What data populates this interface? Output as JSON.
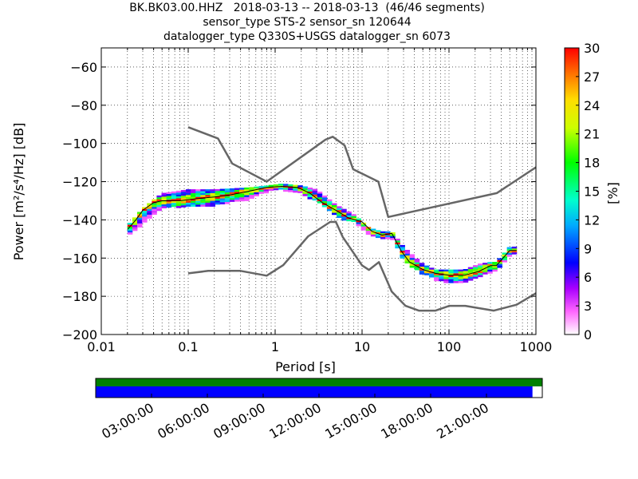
{
  "title": {
    "line1": "BK.BK03.00.HHZ   2018-03-13 -- 2018-03-13  (46/46 segments)",
    "line2": "sensor_type STS-2 sensor_sn 120644",
    "line3": "datalogger_type Q330S+USGS datalogger_sn 6073"
  },
  "chart_data": {
    "type": "heatmap",
    "xlabel": "Period [s]",
    "ylabel": "Power [m²/s⁴/Hz] [dB]",
    "xscale": "log",
    "xlim": [
      0.01,
      1000
    ],
    "ylim": [
      -200,
      -50
    ],
    "x_tick_labels": [
      "0.01",
      "0.1",
      "1",
      "10",
      "100",
      "1000"
    ],
    "x_tick_values": [
      0.01,
      0.1,
      1,
      10,
      100,
      1000
    ],
    "y_ticks": [
      -60,
      -80,
      -100,
      -120,
      -140,
      -160,
      -180,
      -200
    ],
    "y_tick_labels": [
      "−60",
      "−80",
      "−100",
      "−120",
      "−140",
      "−160",
      "−180",
      "−200"
    ],
    "grid": true,
    "colorbar": {
      "label": "[%]",
      "min": 0,
      "max": 30,
      "ticks": [
        0,
        3,
        6,
        9,
        12,
        15,
        18,
        21,
        24,
        27,
        30
      ]
    },
    "new_high_noise_model": {
      "x": [
        0.1,
        0.22,
        0.32,
        0.8,
        3.8,
        4.6,
        6.3,
        7.9,
        15.4,
        20,
        354.8,
        1000
      ],
      "y": [
        -91.5,
        -97.4,
        -110.5,
        -120,
        -98,
        -96.5,
        -101,
        -113.5,
        -120,
        -138.5,
        -126,
        -112.5
      ]
    },
    "new_low_noise_model": {
      "x": [
        0.1,
        0.17,
        0.4,
        0.8,
        1.24,
        2.4,
        4.3,
        5,
        6,
        10,
        12,
        15.6,
        21.9,
        31.6,
        45,
        70,
        101,
        154,
        328,
        600,
        1000
      ],
      "y": [
        -168,
        -166.7,
        -166.7,
        -169.2,
        -163.7,
        -148.6,
        -141.1,
        -141.1,
        -149,
        -163.8,
        -166.2,
        -162.1,
        -177.5,
        -185,
        -187.5,
        -187.5,
        -185,
        -185,
        -187.5,
        -184.4,
        -178.4
      ]
    },
    "psd_mode": {
      "x": [
        0.02,
        0.025,
        0.03,
        0.04,
        0.05,
        0.08,
        0.12,
        0.2,
        0.3,
        0.5,
        0.8,
        1.2,
        1.8,
        2.5,
        3.5,
        5,
        7,
        10,
        13,
        17,
        22,
        28,
        35,
        50,
        70,
        100,
        150,
        220,
        300,
        350,
        500,
        600
      ],
      "y": [
        -145,
        -140,
        -135,
        -131,
        -130,
        -130,
        -129,
        -128,
        -127,
        -125,
        -123,
        -122.5,
        -123,
        -126,
        -131,
        -135,
        -139,
        -141,
        -146,
        -148,
        -147,
        -156,
        -162,
        -166,
        -168,
        -169,
        -169,
        -167,
        -164,
        -164,
        -156,
        -156
      ]
    },
    "psd_min": {
      "x": [
        0.02,
        0.03,
        0.05,
        0.1,
        0.2,
        0.5,
        0.8,
        1.2,
        2,
        3,
        5,
        8,
        12,
        17,
        22,
        30,
        50,
        70,
        100,
        150,
        220,
        300,
        350,
        500,
        600
      ],
      "y": [
        -148,
        -142,
        -133,
        -133,
        -132,
        -129,
        -125,
        -124,
        -126,
        -130,
        -138,
        -141,
        -148,
        -150,
        -149,
        -161,
        -168,
        -171,
        -173,
        -173,
        -170,
        -167,
        -167,
        -158,
        -158
      ]
    },
    "psd_max": {
      "x": [
        0.02,
        0.03,
        0.05,
        0.1,
        0.2,
        0.5,
        0.8,
        1.2,
        2,
        3,
        5,
        8,
        12,
        17,
        22,
        30,
        50,
        70,
        100,
        150,
        220,
        300,
        350,
        500,
        600
      ],
      "y": [
        -143,
        -134,
        -126,
        -124,
        -124,
        -123,
        -122,
        -121,
        -122,
        -124,
        -132,
        -137,
        -144,
        -146,
        -146,
        -154,
        -163,
        -166,
        -166,
        -166,
        -163,
        -162,
        -162,
        -154,
        -154
      ]
    },
    "data_coverage": {
      "time_labels": [
        "03:00:00",
        "06:00:00",
        "09:00:00",
        "12:00:00",
        "15:00:00",
        "18:00:00",
        "21:00:00"
      ],
      "available_fraction": 0.978,
      "psd_fraction": 1.0,
      "colors": {
        "available": "#0000ff",
        "psd": "#008000"
      }
    },
    "colors": {
      "noise_models": "#666666",
      "mode_line": "#000000"
    }
  }
}
